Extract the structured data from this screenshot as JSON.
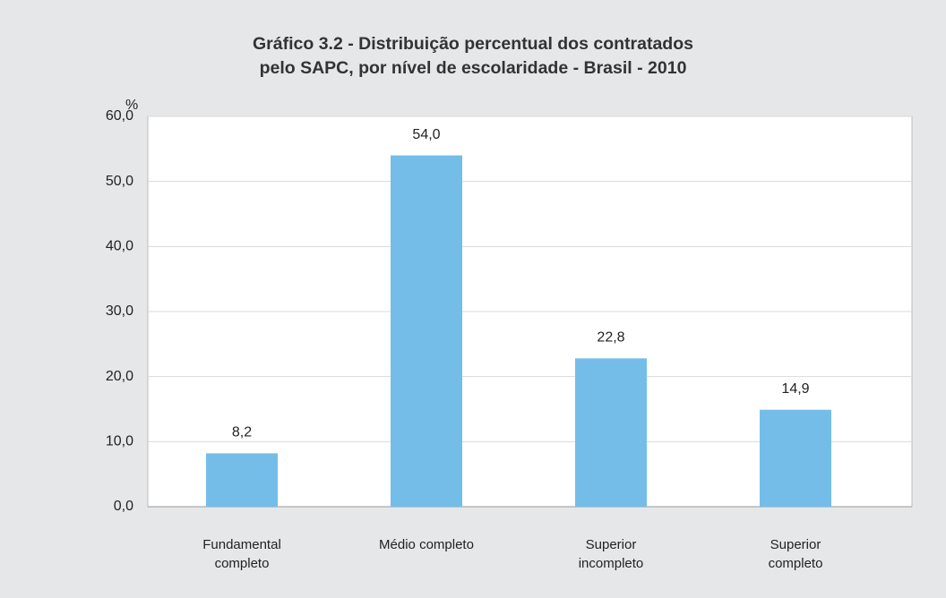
{
  "chart_data": {
    "type": "bar",
    "title": "Gráfico 3.2 - Distribuição percentual dos contratados\npelo SAPC, por nível de escolaridade - Brasil - 2010",
    "y_label": "%",
    "categories": [
      "Fundamental completo",
      "Médio completo",
      "Superior incompleto",
      "Superior completo"
    ],
    "values": [
      8.2,
      54.0,
      22.8,
      14.9
    ],
    "value_labels": [
      "8,2",
      "54,0",
      "22,8",
      "14,9"
    ],
    "color": "#74bde8",
    "ylim": [
      0,
      60
    ],
    "yticks": [
      {
        "value": 0,
        "label": "0,0"
      },
      {
        "value": 10,
        "label": "10,0"
      },
      {
        "value": 20,
        "label": "20,0"
      },
      {
        "value": 30,
        "label": "30,0"
      },
      {
        "value": 40,
        "label": "40,0"
      },
      {
        "value": 50,
        "label": "50,0"
      },
      {
        "value": 60,
        "label": "60,0"
      }
    ],
    "grid": true
  }
}
